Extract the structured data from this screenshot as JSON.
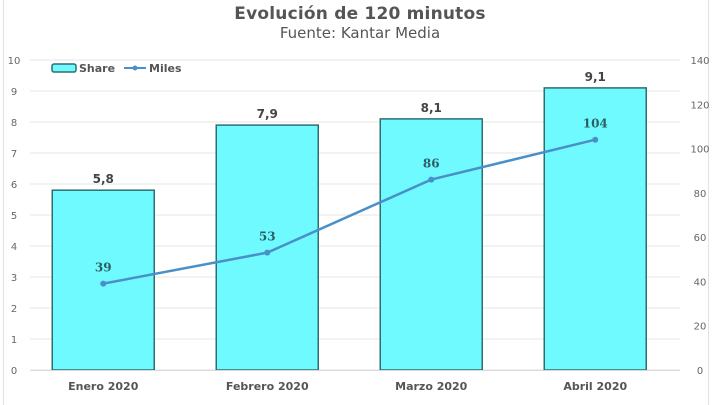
{
  "chart_data": {
    "type": "bar",
    "title": "Evolución de 120 minutos",
    "subtitle": "Fuente: Kantar Media",
    "categories": [
      "Enero 2020",
      "Febrero 2020",
      "Marzo 2020",
      "Abril 2020"
    ],
    "series": [
      {
        "name": "Share",
        "type": "bar",
        "axis": "left",
        "values": [
          5.8,
          7.9,
          8.1,
          9.1
        ],
        "labels": [
          "5,8",
          "7,9",
          "8,1",
          "9,1"
        ],
        "color": "#6ffaff",
        "border": "#2e6e72"
      },
      {
        "name": "Miles",
        "type": "line",
        "axis": "right",
        "values": [
          39,
          53,
          86,
          104
        ],
        "labels": [
          "39",
          "53",
          "86",
          "104"
        ],
        "color": "#4a90c8"
      }
    ],
    "xlabel": "",
    "ylabel": "",
    "ylim": [
      0,
      10
    ],
    "y2lim": [
      0,
      140
    ],
    "yticks": [
      "0",
      "1",
      "2",
      "3",
      "4",
      "5",
      "6",
      "7",
      "8",
      "9",
      "10"
    ],
    "y2ticks": [
      "0",
      "20",
      "40",
      "60",
      "80",
      "100",
      "120",
      "140"
    ],
    "grid": true,
    "legend_position": "top-left"
  },
  "colors": {
    "bar_fill": "#6ffaff",
    "bar_border": "#2e6e72",
    "line": "#4a90c8",
    "grid": "#e4e4e4"
  }
}
